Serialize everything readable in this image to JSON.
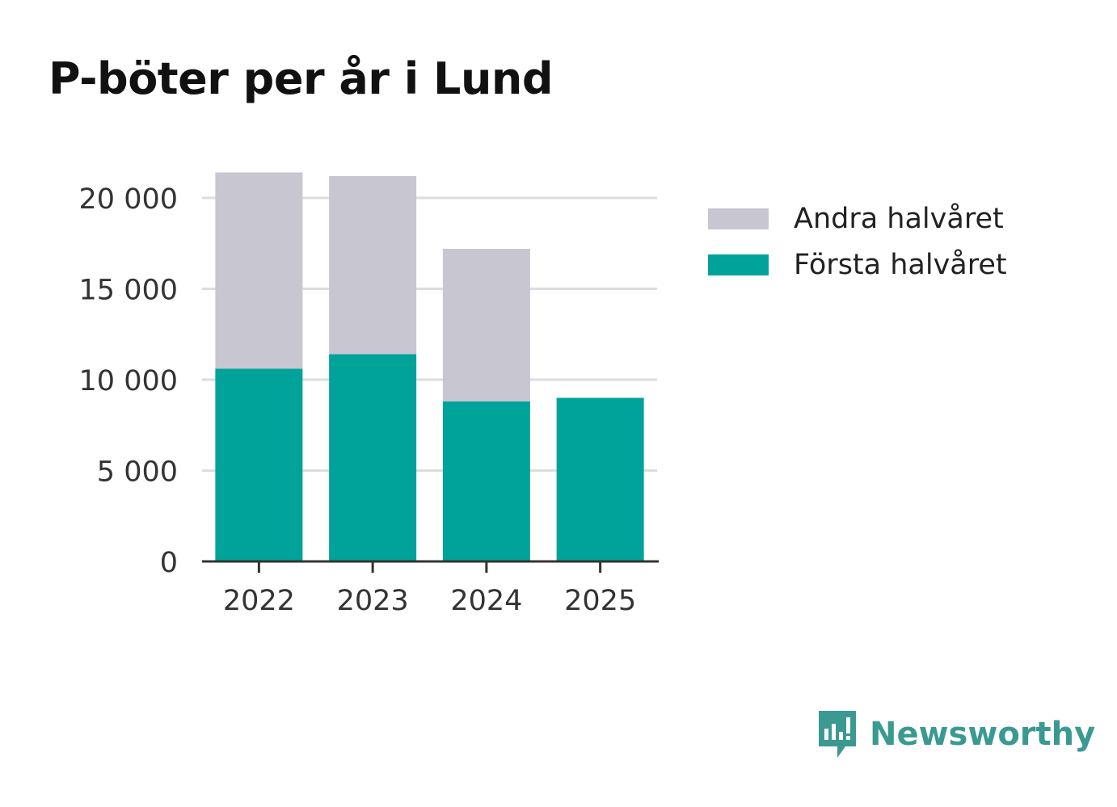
{
  "title": "P-böter per år i Lund",
  "colors": {
    "first": "#00a39a",
    "second": "#c7c6d1",
    "grid": "#dddddd",
    "axis": "#333333",
    "brand": "#3a9a92"
  },
  "legend": [
    {
      "label": "Andra halvåret",
      "series": "second"
    },
    {
      "label": "Första halvåret",
      "series": "first"
    }
  ],
  "brand": {
    "name": "Newsworthy",
    "icon": "newsworthy-logo-icon"
  },
  "chart_data": {
    "type": "bar",
    "stacked": true,
    "title": "P-böter per år i Lund",
    "categories": [
      "2022",
      "2023",
      "2024",
      "2025"
    ],
    "series": [
      {
        "name": "Första halvåret",
        "key": "first",
        "values": [
          10600,
          11400,
          8800,
          9000
        ]
      },
      {
        "name": "Andra halvåret",
        "key": "second",
        "values": [
          10800,
          9800,
          8400,
          0
        ]
      }
    ],
    "ylim": [
      0,
      22000
    ],
    "yticks": [
      0,
      5000,
      10000,
      15000,
      20000
    ],
    "ytick_labels": [
      "0",
      "5 000",
      "10 000",
      "15 000",
      "20 000"
    ],
    "xlabel": "",
    "ylabel": "",
    "grid": true,
    "legend_position": "top-right"
  }
}
